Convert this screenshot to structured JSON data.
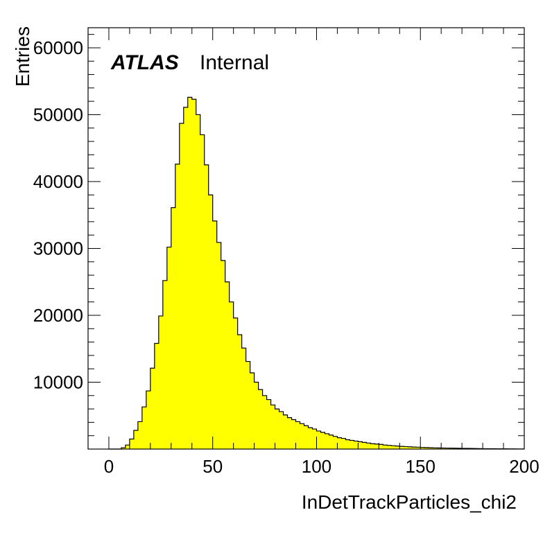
{
  "chart_data": {
    "type": "bar",
    "histogram": true,
    "title": "",
    "experiment_label": "ATLAS",
    "status_label": "Internal",
    "xlabel": "InDetTrackParticles_chi2",
    "ylabel": "Entries",
    "xlim": [
      -10,
      200
    ],
    "ylim": [
      0,
      63000
    ],
    "x_ticks": [
      0,
      50,
      100,
      150,
      200
    ],
    "x_tick_labels": [
      "0",
      "50",
      "100",
      "150",
      "200"
    ],
    "y_ticks": [
      10000,
      20000,
      30000,
      40000,
      50000,
      60000
    ],
    "y_tick_labels": [
      "10000",
      "20000",
      "30000",
      "40000",
      "50000",
      "60000"
    ],
    "bin_width": 2,
    "bin_start": 0,
    "values": [
      0,
      0,
      0,
      200,
      600,
      1500,
      2800,
      4100,
      6300,
      8700,
      12100,
      15800,
      19900,
      25200,
      30200,
      36100,
      42600,
      48700,
      51100,
      52600,
      52300,
      50000,
      47000,
      42500,
      38000,
      34100,
      30900,
      28200,
      25000,
      22000,
      19600,
      17100,
      15100,
      13100,
      11400,
      10000,
      8900,
      8000,
      7400,
      6600,
      6000,
      5600,
      5100,
      4700,
      4400,
      4100,
      3800,
      3500,
      3200,
      3000,
      2700,
      2500,
      2300,
      2100,
      1900,
      1700,
      1600,
      1400,
      1300,
      1200,
      1100,
      1000,
      900,
      800,
      750,
      700,
      600,
      550,
      500,
      450,
      400,
      370,
      340,
      300,
      280,
      250,
      230,
      210,
      190,
      170,
      160,
      150,
      140,
      130,
      120,
      110,
      100,
      90,
      80,
      70,
      60,
      55,
      50,
      45,
      40,
      35,
      30,
      25,
      20,
      20
    ]
  },
  "colors": {
    "fill": "#ffff00",
    "line": "#000000",
    "background": "#ffffff"
  }
}
